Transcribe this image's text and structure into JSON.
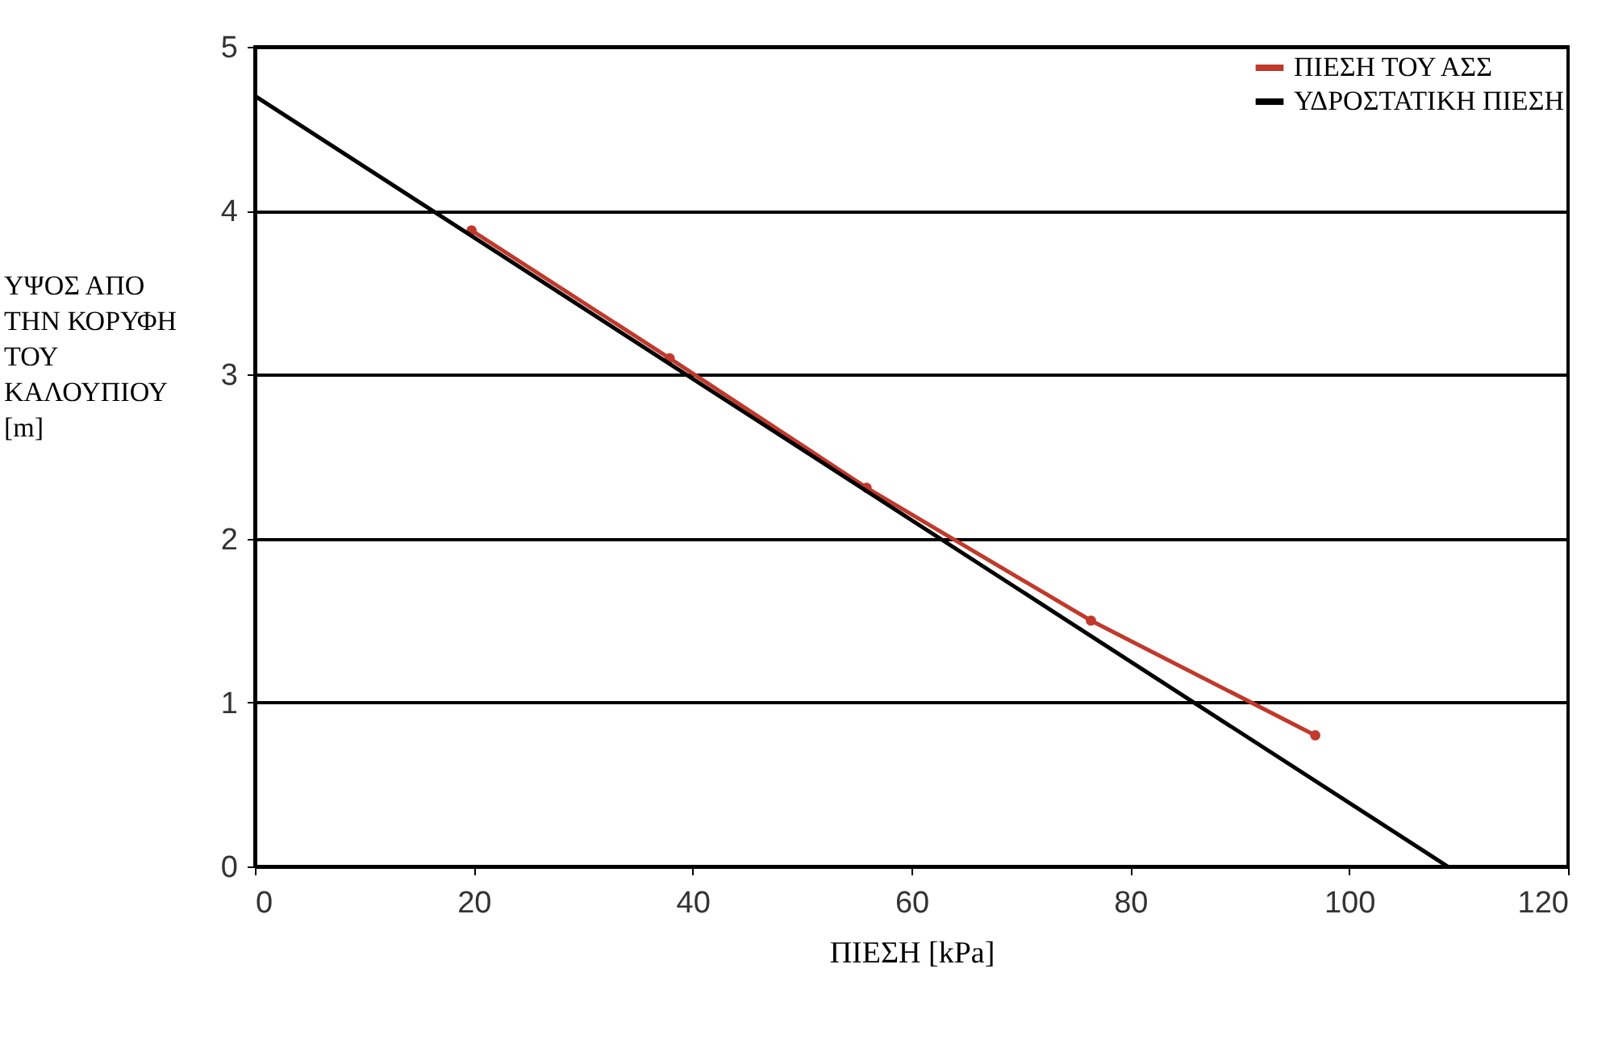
{
  "chart_data": {
    "type": "line",
    "xlabel": "ΠΙΕΣΗ [kPa]",
    "ylabel": "ΥΨΟΣ ΑΠΟ\nΤΗΝ ΚΟΡΥΦΗ\nΤΟΥ\nΚΑΛΟΥΠΙΟΥ\n[m]",
    "series": [
      {
        "name": "ΠΙΕΣΗ ΤΟΥ ΑΣΣ",
        "color": "#c0392b",
        "marker": "circle",
        "x": [
          19.8,
          37.9,
          55.9,
          76.4,
          96.9
        ],
        "values": [
          3.88,
          3.1,
          2.31,
          1.5,
          0.8
        ]
      },
      {
        "name": "ΥΔΡΟΣΤΑΤΙΚΗ ΠΙΕΣΗ",
        "color": "#000000",
        "x": [
          0,
          109
        ],
        "values": [
          4.7,
          0
        ]
      }
    ],
    "xlim": [
      0,
      120
    ],
    "xticks": [
      0,
      20,
      40,
      60,
      80,
      100,
      120
    ],
    "ylim": [
      0,
      5
    ],
    "yticks": [
      0,
      1,
      2,
      3,
      4,
      5
    ],
    "grid": "y",
    "legend": "top right"
  }
}
